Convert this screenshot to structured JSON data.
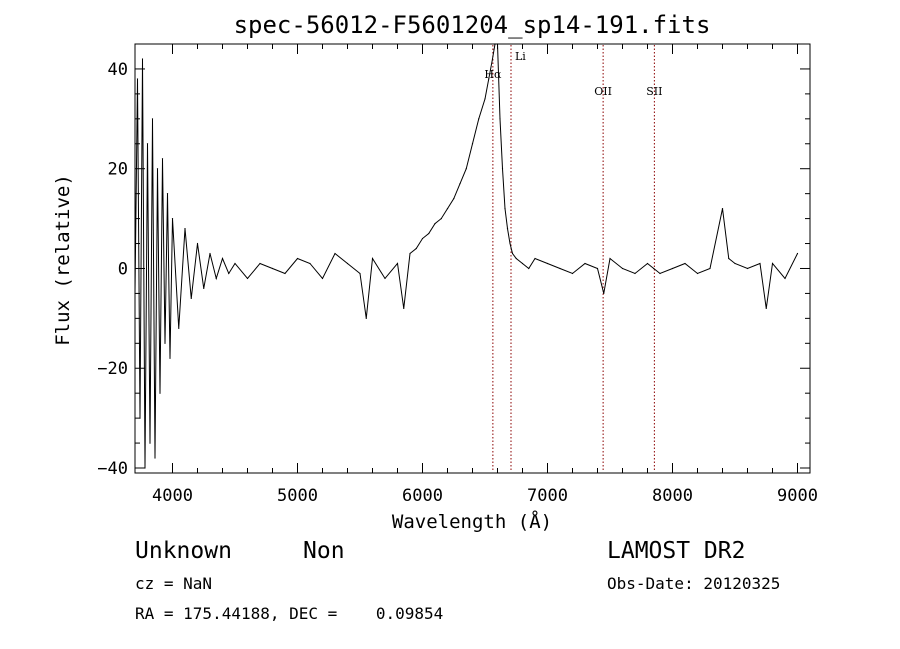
{
  "chart_data": {
    "type": "line",
    "title": "spec-56012-F5601204_sp14-191.fits",
    "xlabel": "Wavelength (Å)",
    "ylabel": "Flux (relative)",
    "xlim": [
      3700,
      9100
    ],
    "ylim": [
      -41,
      45
    ],
    "xticks": [
      4000,
      5000,
      6000,
      7000,
      8000,
      9000
    ],
    "yticks": [
      -40,
      -20,
      0,
      20,
      40
    ],
    "ytick_labels": [
      "−40",
      "−20",
      "0",
      "20",
      "40"
    ],
    "grid": false,
    "line_color": "#000000",
    "marker_color": "#8b0000",
    "series": [
      {
        "x": [
          3700,
          3720,
          3740,
          3760,
          3780,
          3800,
          3820,
          3840,
          3860,
          3880,
          3900,
          3920,
          3940,
          3960,
          3980,
          4000,
          4050,
          4100,
          4150,
          4200,
          4250,
          4300,
          4350,
          4400,
          4450,
          4500,
          4600,
          4700,
          4800,
          4900,
          5000,
          5100,
          5200,
          5300,
          5400,
          5500,
          5550,
          5600,
          5700,
          5800,
          5850,
          5900,
          5950,
          6000,
          6050,
          6100,
          6150,
          6200,
          6250,
          6300,
          6350,
          6400,
          6450,
          6500,
          6530,
          6560,
          6580,
          6600,
          6620,
          6640,
          6660,
          6680,
          6700,
          6720,
          6750,
          6800,
          6850,
          6900,
          7000,
          7100,
          7200,
          7300,
          7400,
          7450,
          7500,
          7600,
          7700,
          7800,
          7850,
          7900,
          8000,
          8100,
          8200,
          8300,
          8400,
          8450,
          8500,
          8600,
          8700,
          8750,
          8800,
          8900,
          9000
        ],
        "y": [
          -5,
          38,
          -30,
          42,
          -40,
          25,
          -35,
          30,
          -38,
          20,
          -25,
          22,
          -15,
          15,
          -18,
          10,
          -12,
          8,
          -6,
          5,
          -4,
          3,
          -2,
          2,
          -1,
          1,
          -2,
          1,
          0,
          -1,
          2,
          1,
          -2,
          3,
          1,
          -1,
          -10,
          2,
          -2,
          1,
          -8,
          3,
          4,
          6,
          7,
          9,
          10,
          12,
          14,
          17,
          20,
          25,
          30,
          34,
          38,
          42,
          47,
          45,
          30,
          20,
          12,
          8,
          5,
          3,
          2,
          1,
          0,
          2,
          1,
          0,
          -1,
          1,
          0,
          -5,
          2,
          0,
          -1,
          1,
          0,
          -1,
          0,
          1,
          -1,
          0,
          12,
          2,
          1,
          0,
          1,
          -8,
          1,
          -2,
          3
        ]
      }
    ],
    "line_markers": [
      {
        "label": "Hα",
        "x": 6563
      },
      {
        "label": "Li",
        "x": 6708
      },
      {
        "label": "OII",
        "x": 7445
      },
      {
        "label": "SII",
        "x": 7855
      }
    ]
  },
  "info": {
    "object_class": "Unknown",
    "object_subclass": "Non",
    "survey": "LAMOST DR2",
    "cz": "cz = NaN",
    "obs_date": "Obs-Date: 20120325",
    "coords": "RA = 175.44188, DEC =    0.09854"
  }
}
